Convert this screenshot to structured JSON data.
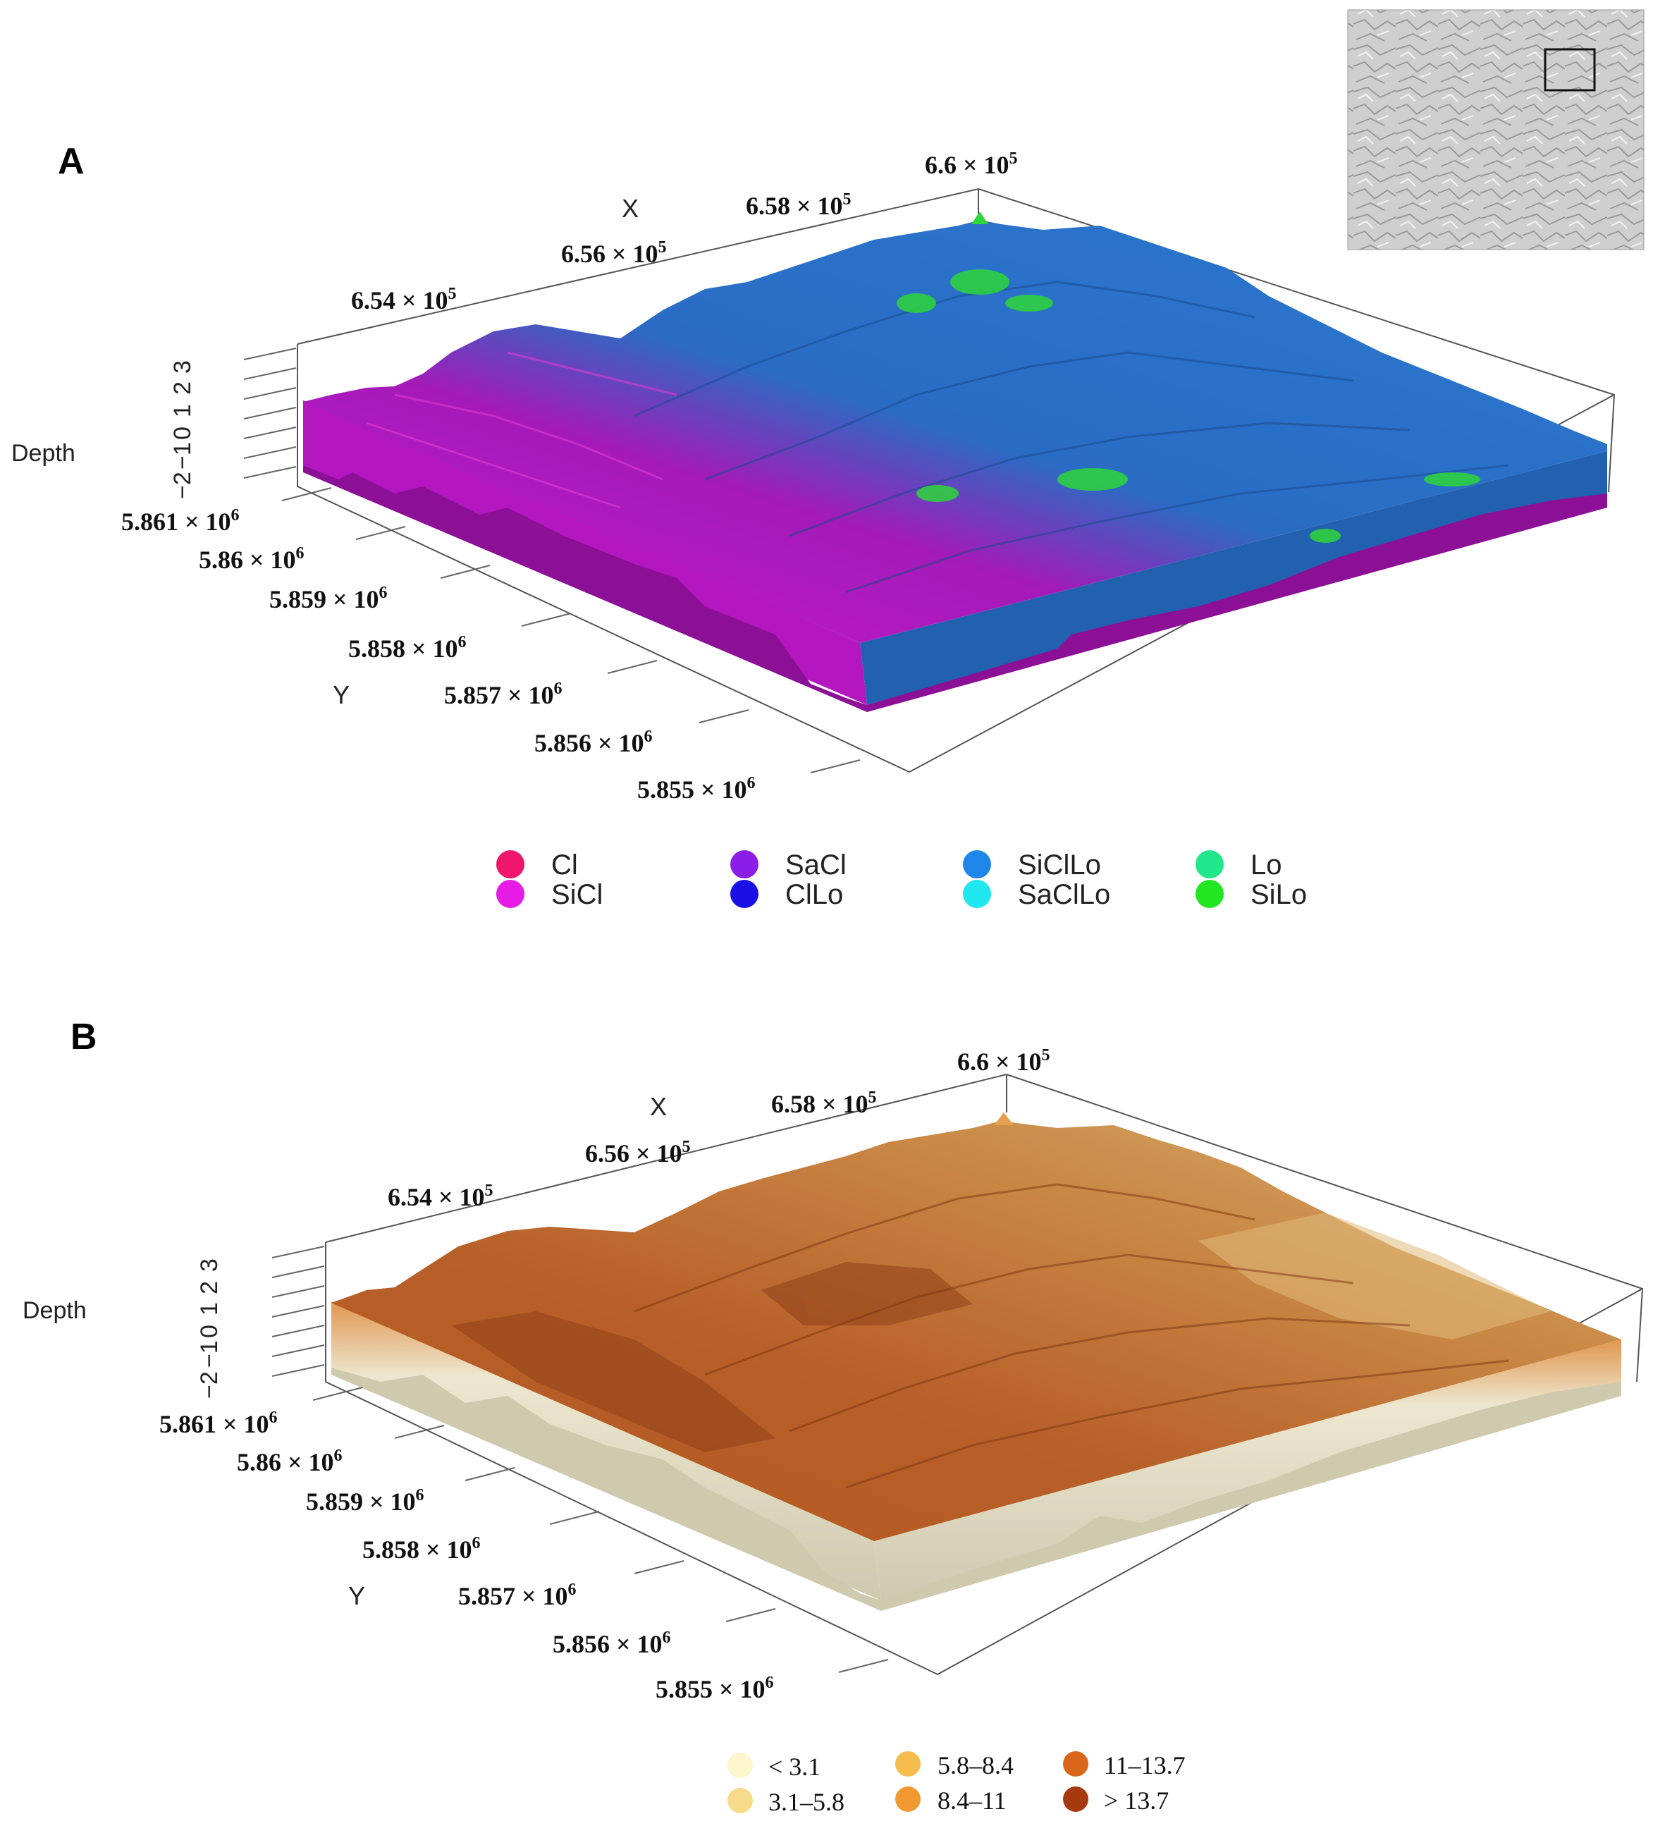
{
  "panel_a": {
    "label": "A",
    "x_axis_label": "X",
    "y_axis_label": "Y",
    "z_axis_label": "Depth",
    "x_ticks": [
      {
        "base": "6.54 × 10",
        "exp": "5"
      },
      {
        "base": "6.56 × 10",
        "exp": "5"
      },
      {
        "base": "6.58 × 10",
        "exp": "5"
      },
      {
        "base": "6.6 × 10",
        "exp": "5"
      }
    ],
    "y_ticks": [
      {
        "base": "5.861 × 10",
        "exp": "6"
      },
      {
        "base": "5.86 × 10",
        "exp": "6"
      },
      {
        "base": "5.859 × 10",
        "exp": "6"
      },
      {
        "base": "5.858 × 10",
        "exp": "6"
      },
      {
        "base": "5.857 × 10",
        "exp": "6"
      },
      {
        "base": "5.856 × 10",
        "exp": "6"
      },
      {
        "base": "5.855 × 10",
        "exp": "6"
      }
    ],
    "z_ticks": [
      "3",
      "2",
      "1",
      "0",
      "−1",
      "−2"
    ],
    "legend": [
      {
        "label": "Cl",
        "color": "#f0166e"
      },
      {
        "label": "SiCl",
        "color": "#e61ce6"
      },
      {
        "label": "SaCl",
        "color": "#8a1ee8"
      },
      {
        "label": "ClLo",
        "color": "#1a10e6"
      },
      {
        "label": "SiClLo",
        "color": "#1e86e8"
      },
      {
        "label": "SaClLo",
        "color": "#20e6ee"
      },
      {
        "label": "Lo",
        "color": "#20e88a"
      },
      {
        "label": "SiLo",
        "color": "#22e622"
      }
    ]
  },
  "panel_b": {
    "label": "B",
    "x_axis_label": "X",
    "y_axis_label": "Y",
    "z_axis_label": "Depth",
    "x_ticks": [
      {
        "base": "6.54 × 10",
        "exp": "5"
      },
      {
        "base": "6.56 × 10",
        "exp": "5"
      },
      {
        "base": "6.58 × 10",
        "exp": "5"
      },
      {
        "base": "6.6 × 10",
        "exp": "5"
      }
    ],
    "y_ticks": [
      {
        "base": "5.861 × 10",
        "exp": "6"
      },
      {
        "base": "5.86 × 10",
        "exp": "6"
      },
      {
        "base": "5.859 × 10",
        "exp": "6"
      },
      {
        "base": "5.858 × 10",
        "exp": "6"
      },
      {
        "base": "5.857 × 10",
        "exp": "6"
      },
      {
        "base": "5.856 × 10",
        "exp": "6"
      },
      {
        "base": "5.855 × 10",
        "exp": "6"
      }
    ],
    "z_ticks": [
      "3",
      "2",
      "1",
      "0",
      "−1",
      "−2"
    ],
    "legend": [
      {
        "label": "< 3.1",
        "color": "#fdf6cc"
      },
      {
        "label": "3.1–5.8",
        "color": "#f6dc8a"
      },
      {
        "label": "5.8–8.4",
        "color": "#f5bc4e"
      },
      {
        "label": "8.4–11",
        "color": "#f29a32"
      },
      {
        "label": "11–13.7",
        "color": "#d9661a"
      },
      {
        "label": "> 13.7",
        "color": "#a53a0e"
      }
    ]
  },
  "colors": {
    "sicl": "#d21ad4",
    "sicllo": "#2a72c8",
    "sicllo_dark": "#1e5aa4",
    "cllo": "#1c14c8",
    "silo": "#2ed63a",
    "soil_base": "#e4e0c8",
    "brown_light": "#d79a5a",
    "brown_mid": "#c0703a",
    "brown_dark": "#8f3f18"
  }
}
